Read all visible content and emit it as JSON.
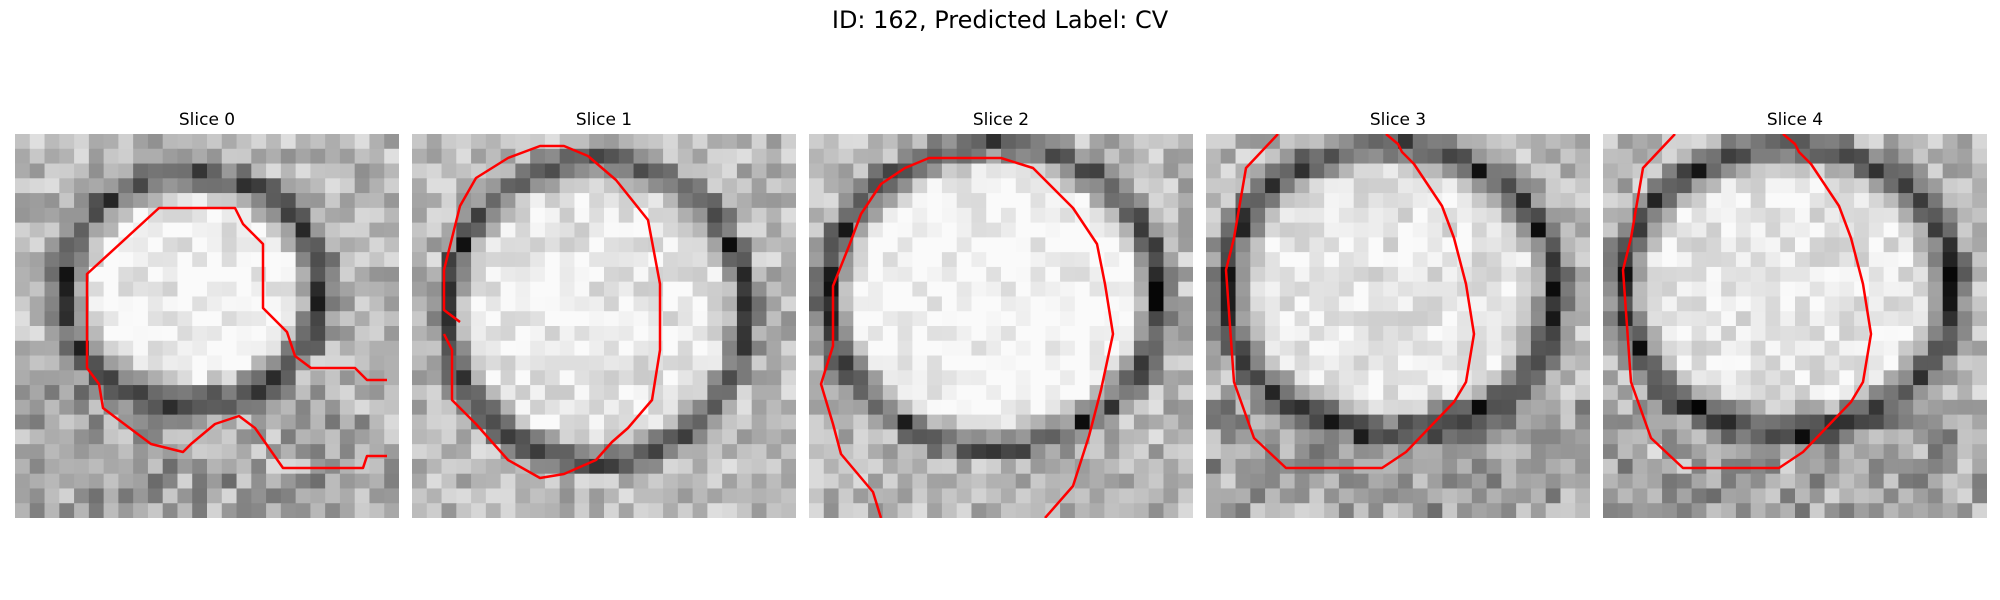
{
  "figure": {
    "title": "ID: 162, Predicted Label: CV"
  },
  "panels": [
    {
      "title": "Slice 0",
      "image": "grayscale-microscopy-slice"
    },
    {
      "title": "Slice 1",
      "image": "grayscale-microscopy-slice"
    },
    {
      "title": "Slice 2",
      "image": "grayscale-microscopy-slice"
    },
    {
      "title": "Slice 3",
      "image": "grayscale-microscopy-slice"
    },
    {
      "title": "Slice 4",
      "image": "grayscale-microscopy-slice"
    }
  ],
  "colors": {
    "contour": "#ff0000",
    "background": "#ffffff"
  }
}
